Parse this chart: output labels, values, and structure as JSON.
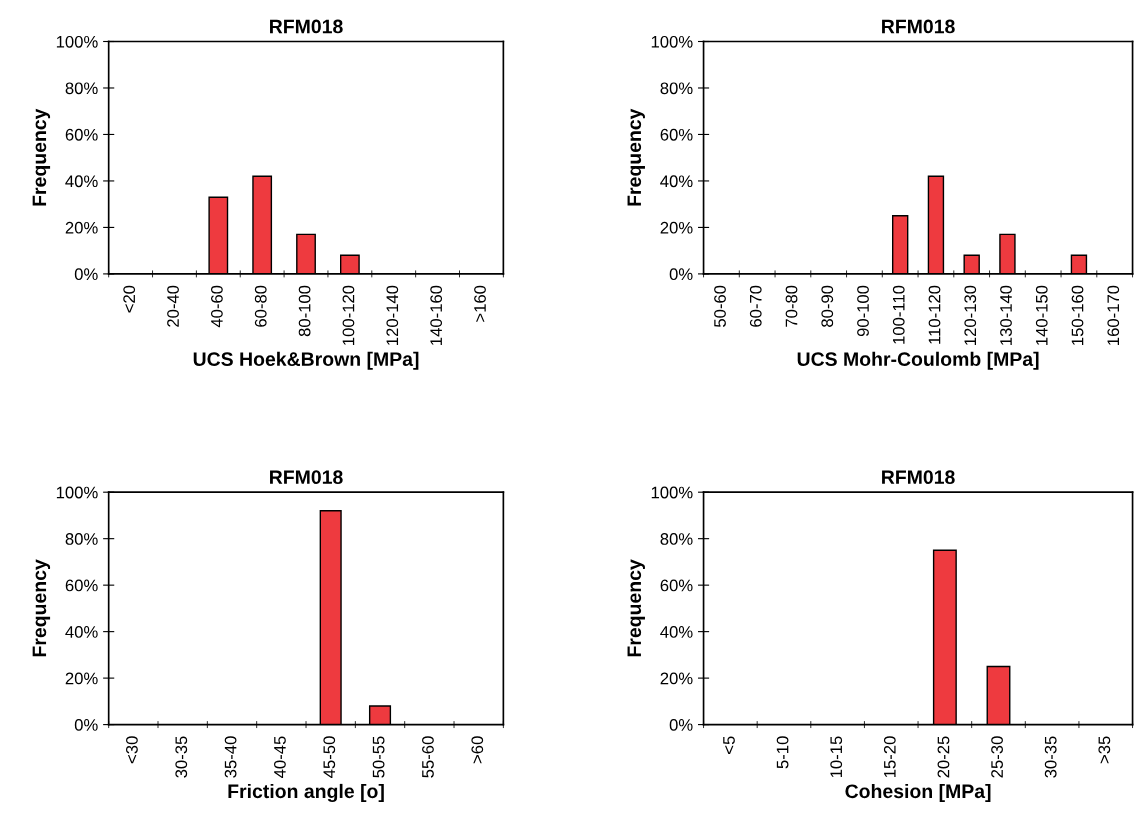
{
  "chart_data": [
    {
      "type": "bar",
      "title": "RFM018",
      "xlabel": "UCS Hoek&Brown [MPa]",
      "ylabel": "Frequency",
      "categories": [
        "<20",
        "20-40",
        "40-60",
        "60-80",
        "80-100",
        "100-120",
        "120-140",
        "140-160",
        ">160"
      ],
      "values": [
        0,
        0,
        33,
        42,
        17,
        8,
        0,
        0,
        0
      ],
      "color": "#ee3a3f",
      "ylim": [
        0,
        100
      ],
      "yticks": [
        {
          "value": 0,
          "label": "0%"
        },
        {
          "value": 20,
          "label": "20%"
        },
        {
          "value": 40,
          "label": "40%"
        },
        {
          "value": 60,
          "label": "60%"
        },
        {
          "value": 80,
          "label": "80%"
        },
        {
          "value": 100,
          "label": "100%"
        }
      ]
    },
    {
      "type": "bar",
      "title": "RFM018",
      "xlabel": "UCS Mohr-Coulomb [MPa]",
      "ylabel": "Frequency",
      "categories": [
        "50-60",
        "60-70",
        "70-80",
        "80-90",
        "90-100",
        "100-110",
        "110-120",
        "120-130",
        "130-140",
        "140-150",
        "150-160",
        "160-170"
      ],
      "values": [
        0,
        0,
        0,
        0,
        0,
        25,
        42,
        8,
        17,
        0,
        8,
        0
      ],
      "color": "#ee3a3f",
      "ylim": [
        0,
        100
      ],
      "yticks": [
        {
          "value": 0,
          "label": "0%"
        },
        {
          "value": 20,
          "label": "20%"
        },
        {
          "value": 40,
          "label": "40%"
        },
        {
          "value": 60,
          "label": "60%"
        },
        {
          "value": 80,
          "label": "80%"
        },
        {
          "value": 100,
          "label": "100%"
        }
      ]
    },
    {
      "type": "bar",
      "title": "RFM018",
      "xlabel": "Friction angle [o]",
      "ylabel": "Frequency",
      "categories": [
        "<30",
        "30-35",
        "35-40",
        "40-45",
        "45-50",
        "50-55",
        "55-60",
        ">60"
      ],
      "values": [
        0,
        0,
        0,
        0,
        92,
        8,
        0,
        0
      ],
      "color": "#ee3a3f",
      "ylim": [
        0,
        100
      ],
      "yticks": [
        {
          "value": 0,
          "label": "0%"
        },
        {
          "value": 20,
          "label": "20%"
        },
        {
          "value": 40,
          "label": "40%"
        },
        {
          "value": 60,
          "label": "60%"
        },
        {
          "value": 80,
          "label": "80%"
        },
        {
          "value": 100,
          "label": "100%"
        }
      ]
    },
    {
      "type": "bar",
      "title": "RFM018",
      "xlabel": "Cohesion [MPa]",
      "ylabel": "Frequency",
      "categories": [
        "<5",
        "5-10",
        "10-15",
        "15-20",
        "20-25",
        "25-30",
        "30-35",
        ">35"
      ],
      "values": [
        0,
        0,
        0,
        0,
        75,
        25,
        0,
        0
      ],
      "color": "#ee3a3f",
      "ylim": [
        0,
        100
      ],
      "yticks": [
        {
          "value": 0,
          "label": "0%"
        },
        {
          "value": 20,
          "label": "20%"
        },
        {
          "value": 40,
          "label": "40%"
        },
        {
          "value": 60,
          "label": "60%"
        },
        {
          "value": 80,
          "label": "80%"
        },
        {
          "value": 100,
          "label": "100%"
        }
      ]
    }
  ]
}
